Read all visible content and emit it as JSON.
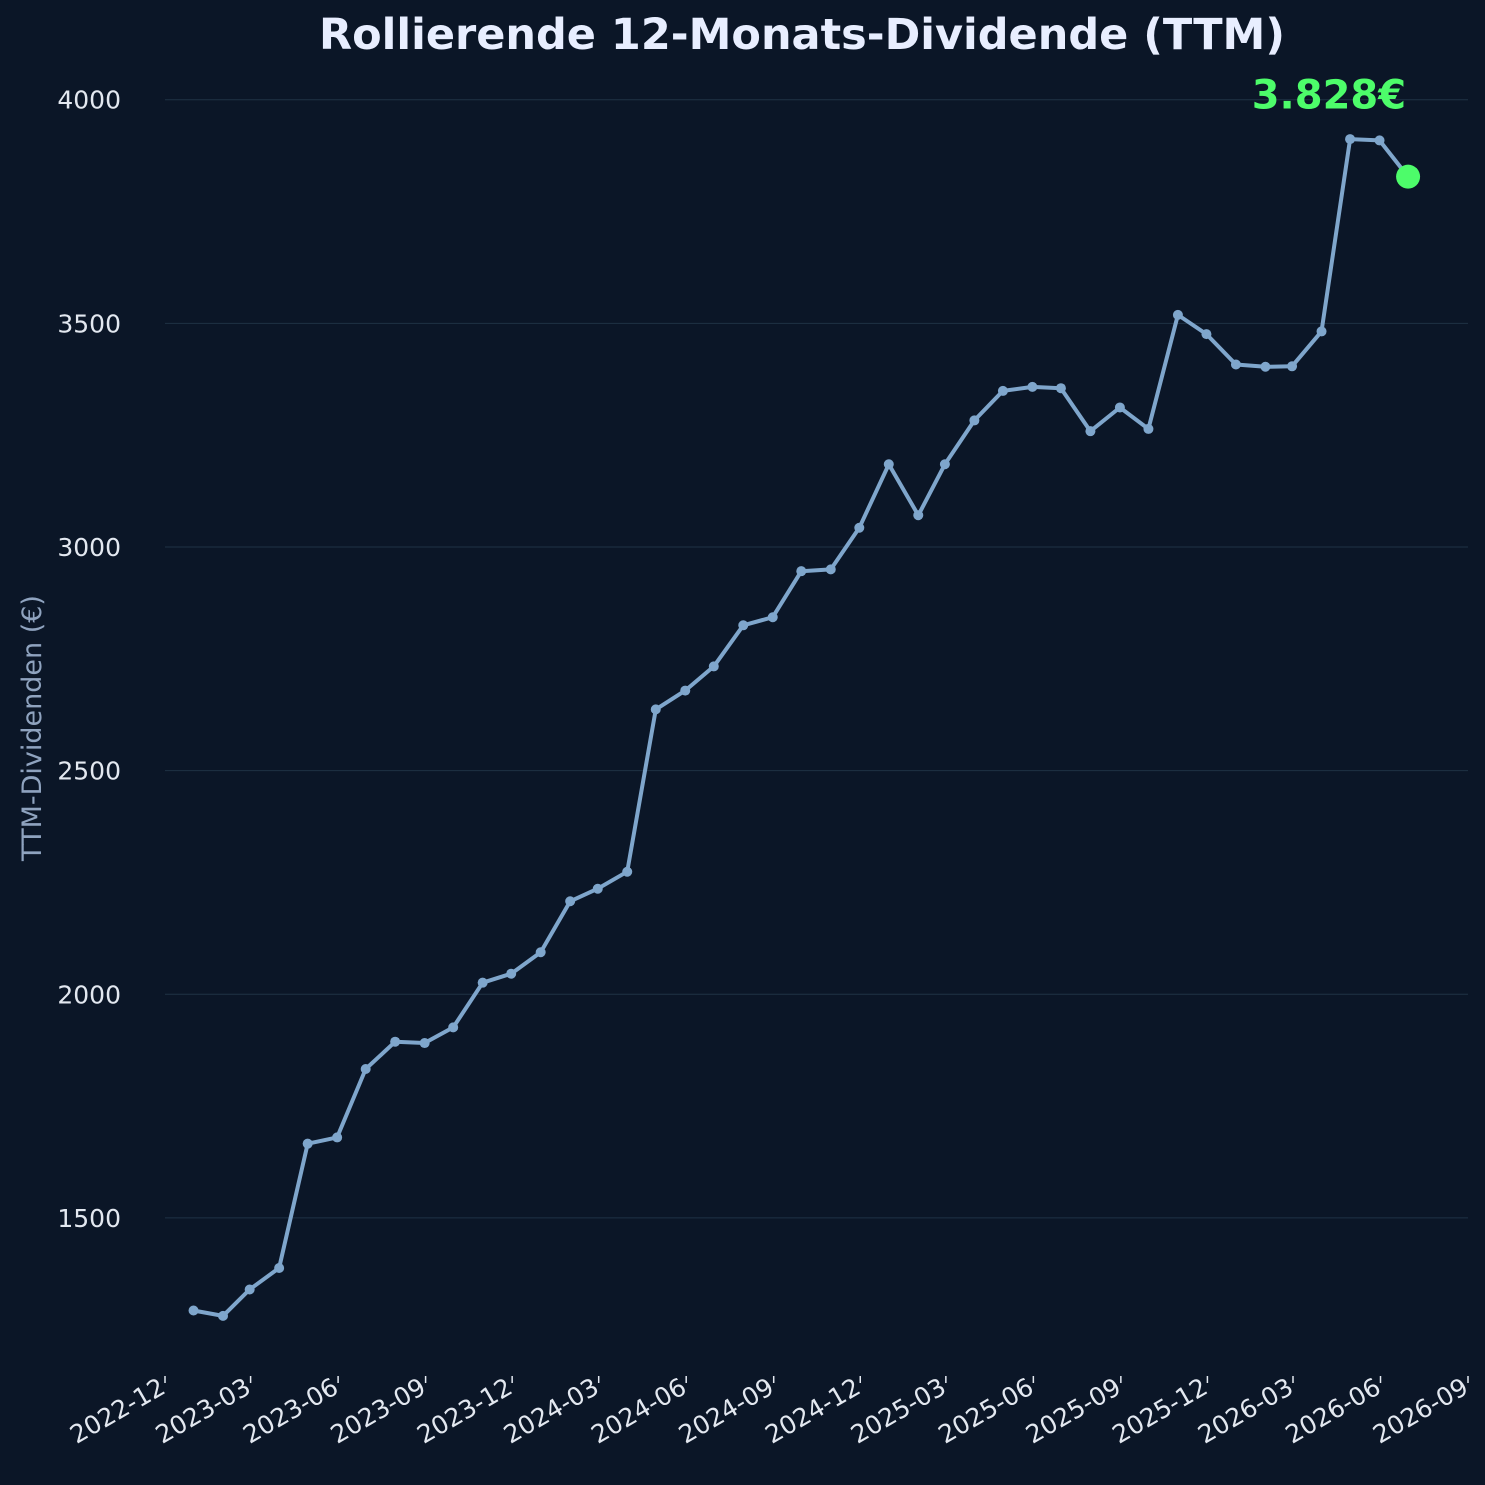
{
  "chart_data": {
    "type": "line",
    "title": "Rollierende 12-Monats-Dividende (TTM)",
    "xlabel": "",
    "ylabel": "TTM-Dividenden (€)",
    "ylim": [
      1160,
      4100
    ],
    "yticks": [
      1500,
      2000,
      2500,
      3000,
      3500,
      4000
    ],
    "xlim": [
      "2022-12-01",
      "2026-09-01"
    ],
    "xticks": [
      "2022-12",
      "2023-03",
      "2023-06",
      "2023-09",
      "2023-12",
      "2024-03",
      "2024-06",
      "2024-09",
      "2024-12",
      "2025-03",
      "2025-06",
      "2025-09",
      "2025-12",
      "2026-03",
      "2026-06",
      "2026-09"
    ],
    "grid": "horizontal",
    "series": [
      {
        "x": [
          "2022-12-31",
          "2023-01-31",
          "2023-02-28",
          "2023-03-31",
          "2023-04-30",
          "2023-05-31",
          "2023-06-30",
          "2023-07-31",
          "2023-08-31",
          "2023-09-30",
          "2023-10-31",
          "2023-11-30",
          "2023-12-31",
          "2024-01-31",
          "2024-02-29",
          "2024-03-31",
          "2024-04-30",
          "2024-05-31",
          "2024-06-30",
          "2024-07-31",
          "2024-08-31",
          "2024-09-30",
          "2024-10-31",
          "2024-11-30",
          "2024-12-31",
          "2025-01-31",
          "2025-02-28",
          "2025-03-31",
          "2025-04-30",
          "2025-05-31",
          "2025-06-30",
          "2025-07-31",
          "2025-08-31",
          "2025-09-30",
          "2025-10-31",
          "2025-11-30",
          "2025-12-31",
          "2026-01-31",
          "2026-02-28",
          "2026-03-31",
          "2026-04-30",
          "2026-05-31",
          "2026-06-30"
        ],
        "values": [
          1293,
          1281,
          1340,
          1388,
          1666,
          1680,
          1833,
          1894,
          1891,
          1926,
          2026,
          2046,
          2094,
          2208,
          2236,
          2274,
          2637,
          2679,
          2733,
          2825,
          2843,
          2946,
          2950,
          3043,
          3185,
          3071,
          3185,
          3283,
          3349,
          3358,
          3355,
          3259,
          3312,
          3264,
          3519,
          3476,
          3408,
          3403,
          3404,
          3482,
          3912,
          3909,
          3828
        ]
      }
    ],
    "last_value_label": "3.828€",
    "colors": {
      "background": "#0b1627",
      "line": "#7fa6cc",
      "highlight": "#4dfc6a",
      "grid": "#1f3245",
      "title": "#e8eeff",
      "tick_text": "#e3e8f0",
      "ylabel_text": "#8fa3bf"
    }
  }
}
